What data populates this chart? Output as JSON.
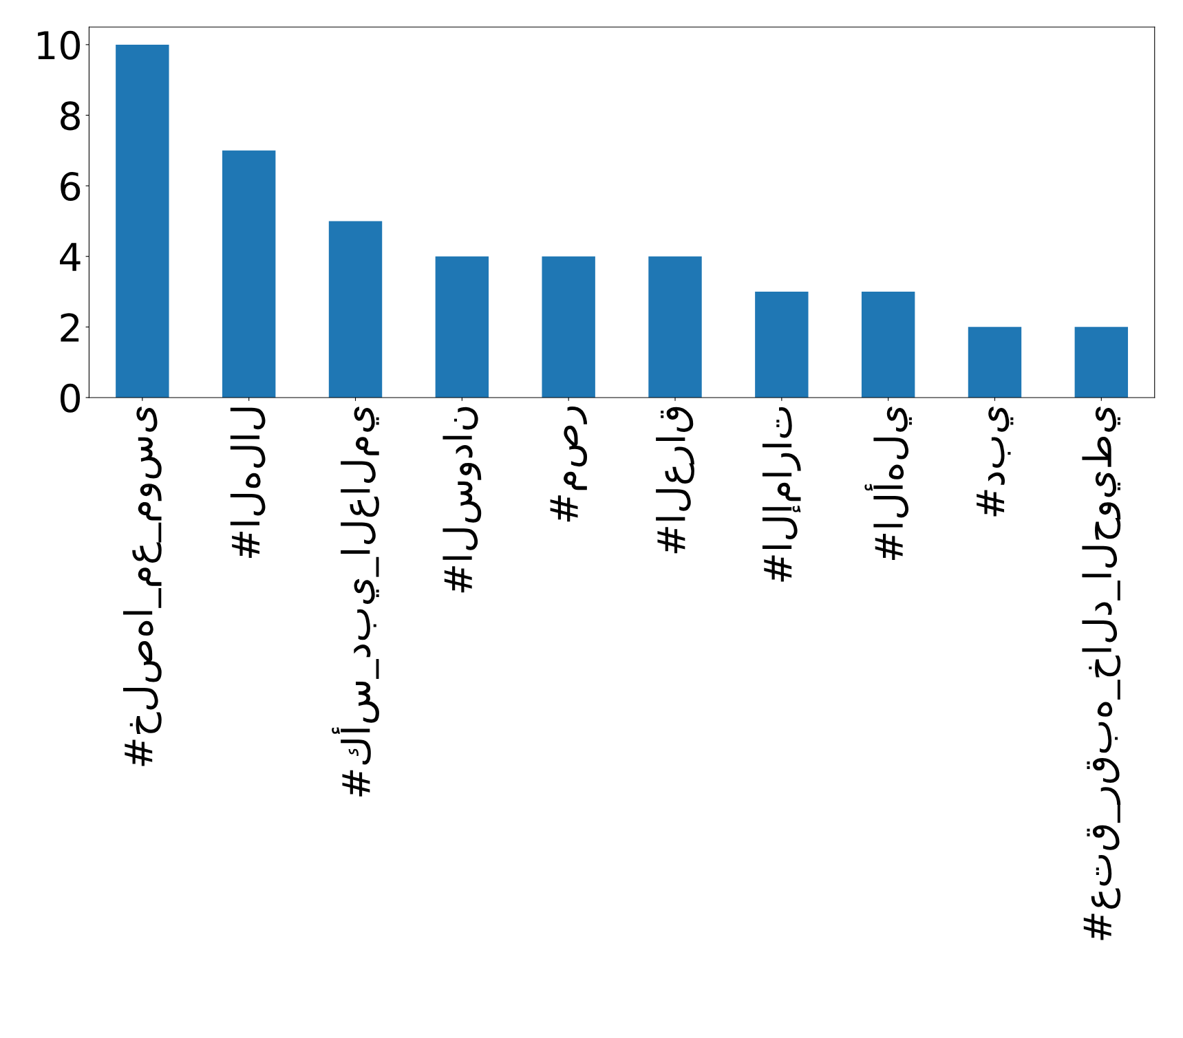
{
  "chart_data": {
    "type": "bar",
    "categories": [
      "#خلصها_مع_موسى",
      "#الهلال",
      "#كأس_دبي_العالمي",
      "#السودان",
      "#مصر",
      "#العراق",
      "#الإمارات",
      "#الأهلي",
      "#دبي",
      "#عتق_رقبه_خالد_الحويطي"
    ],
    "values": [
      10,
      7,
      5,
      4,
      4,
      4,
      3,
      3,
      2,
      2
    ],
    "color": "#1f77b4",
    "ylim": [
      0,
      10.5
    ],
    "yticks": [
      0,
      2,
      4,
      6,
      8,
      10
    ],
    "grid": false,
    "legend": false
  }
}
